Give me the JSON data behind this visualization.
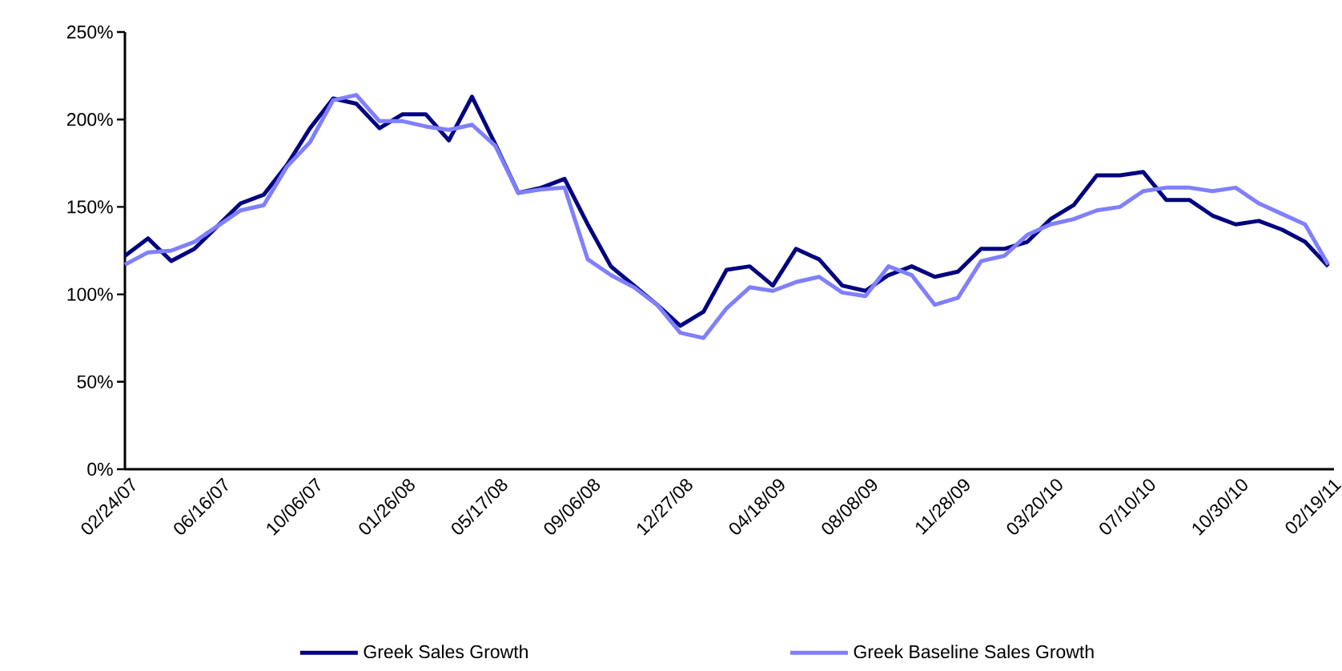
{
  "chart_data": {
    "type": "line",
    "x": [
      "2007-02-24",
      "2007-03-24",
      "2007-04-21",
      "2007-05-19",
      "2007-06-16",
      "2007-07-14",
      "2007-08-11",
      "2007-09-08",
      "2007-10-06",
      "2007-11-03",
      "2007-12-01",
      "2007-12-29",
      "2008-01-26",
      "2008-02-23",
      "2008-03-22",
      "2008-04-19",
      "2008-05-17",
      "2008-06-14",
      "2008-07-12",
      "2008-08-09",
      "2008-09-06",
      "2008-10-04",
      "2008-11-01",
      "2008-11-29",
      "2008-12-27",
      "2009-01-24",
      "2009-02-21",
      "2009-03-21",
      "2009-04-18",
      "2009-05-16",
      "2009-06-13",
      "2009-07-11",
      "2009-08-08",
      "2009-09-05",
      "2009-10-03",
      "2009-10-31",
      "2009-11-28",
      "2009-12-26",
      "2010-01-23",
      "2010-02-20",
      "2010-03-20",
      "2010-04-17",
      "2010-05-15",
      "2010-06-12",
      "2010-07-10",
      "2010-08-07",
      "2010-09-04",
      "2010-10-02",
      "2010-10-30",
      "2010-11-27",
      "2010-12-25",
      "2011-01-22",
      "2011-02-19"
    ],
    "series": [
      {
        "name": "Greek Sales Growth",
        "color": "#000080",
        "values": [
          122,
          132,
          119,
          126,
          139,
          152,
          157,
          174,
          195,
          212,
          209,
          195,
          203,
          203,
          188,
          213,
          186,
          158,
          161,
          166,
          140,
          116,
          105,
          94,
          82,
          90,
          114,
          116,
          105,
          126,
          120,
          105,
          102,
          111,
          116,
          110,
          113,
          126,
          126,
          130,
          143,
          151,
          168,
          168,
          170,
          154,
          154,
          145,
          140,
          142,
          137,
          130,
          116
        ]
      },
      {
        "name": "Greek Baseline Sales Growth",
        "color": "#7f7fff",
        "values": [
          117,
          124,
          125,
          130,
          139,
          148,
          151,
          173,
          187,
          211,
          214,
          199,
          199,
          196,
          194,
          197,
          185,
          158,
          160,
          161,
          120,
          111,
          104,
          94,
          78,
          75,
          92,
          104,
          102,
          107,
          110,
          101,
          99,
          116,
          111,
          94,
          98,
          119,
          122,
          134,
          140,
          143,
          148,
          150,
          159,
          161,
          161,
          159,
          161,
          152,
          146,
          140,
          117
        ]
      }
    ],
    "xlim": [
      "2007-02-24",
      "2011-02-26"
    ],
    "xticks": [
      {
        "value": "2007-02-24",
        "label": "02/24/07"
      },
      {
        "value": "2007-06-16",
        "label": "06/16/07"
      },
      {
        "value": "2007-10-06",
        "label": "10/06/07"
      },
      {
        "value": "2008-01-26",
        "label": "01/26/08"
      },
      {
        "value": "2008-05-17",
        "label": "05/17/08"
      },
      {
        "value": "2008-09-06",
        "label": "09/06/08"
      },
      {
        "value": "2008-12-27",
        "label": "12/27/08"
      },
      {
        "value": "2009-04-18",
        "label": "04/18/09"
      },
      {
        "value": "2009-08-08",
        "label": "08/08/09"
      },
      {
        "value": "2009-11-28",
        "label": "11/28/09"
      },
      {
        "value": "2010-03-20",
        "label": "03/20/10"
      },
      {
        "value": "2010-07-10",
        "label": "07/10/10"
      },
      {
        "value": "2010-10-30",
        "label": "10/30/10"
      },
      {
        "value": "2011-02-19",
        "label": "02/19/11"
      }
    ],
    "ylim": [
      0,
      250
    ],
    "yticks": [
      {
        "value": 0,
        "label": "0%"
      },
      {
        "value": 50,
        "label": "50%"
      },
      {
        "value": 100,
        "label": "100%"
      },
      {
        "value": 150,
        "label": "150%"
      },
      {
        "value": 200,
        "label": "200%"
      },
      {
        "value": 250,
        "label": "250%"
      }
    ],
    "legend": "bottom",
    "marker": "none",
    "line_style": "solid"
  }
}
